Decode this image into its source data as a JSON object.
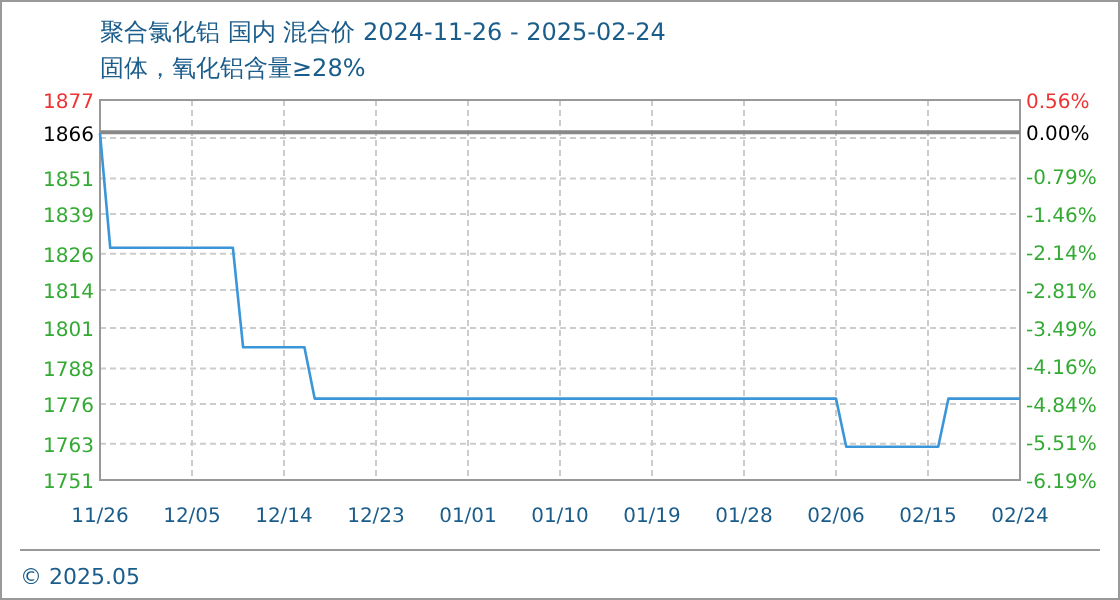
{
  "chart_data": {
    "type": "line",
    "title": "聚合氯化铝 国内 混合价 2024-11-26 - 2025-02-24",
    "subtitle": "固体，氧化铝含量≥28%",
    "x": [
      "2024-11-26",
      "2024-11-27",
      "2024-12-09",
      "2024-12-10",
      "2024-12-16",
      "2024-12-17",
      "2025-02-06",
      "2025-02-07",
      "2025-02-16",
      "2025-02-17",
      "2025-02-24"
    ],
    "series": [
      {
        "color": "#3a96d8",
        "values": [
          1866,
          1828,
          1828,
          1795,
          1795,
          1778,
          1778,
          1762,
          1762,
          1778,
          1778
        ]
      }
    ],
    "xlim": [
      "2024-11-26",
      "2025-02-24"
    ],
    "xticks": [
      {
        "value": "2024-11-26",
        "label": "11/26"
      },
      {
        "value": "2024-12-05",
        "label": "12/05"
      },
      {
        "value": "2024-12-14",
        "label": "12/14"
      },
      {
        "value": "2024-12-23",
        "label": "12/23"
      },
      {
        "value": "2025-01-01",
        "label": "01/01"
      },
      {
        "value": "2025-01-10",
        "label": "01/10"
      },
      {
        "value": "2025-01-19",
        "label": "01/19"
      },
      {
        "value": "2025-01-28",
        "label": "01/28"
      },
      {
        "value": "2025-02-06",
        "label": "02/06"
      },
      {
        "value": "2025-02-15",
        "label": "02/15"
      },
      {
        "value": "2025-02-24",
        "label": "02/24"
      }
    ],
    "ylim": [
      1751,
      1877
    ],
    "yticks": [
      1751,
      1763,
      {
        "value": 1776.2,
        "label": "1776"
      },
      1788,
      {
        "value": 1801.4,
        "label": "1801"
      },
      1814,
      1826,
      {
        "value": 1839.2,
        "label": "1839"
      },
      1851,
      {
        "value": 1864.4,
        "label": null
      },
      1877
    ],
    "y2lim": [
      -6.19,
      0.56
    ],
    "y2ticks": [
      {
        "value": -6.19,
        "label": "-6.19%"
      },
      {
        "value": -5.515,
        "label": "-5.51%"
      },
      {
        "value": -4.84,
        "label": "-4.84%"
      },
      {
        "value": -4.165,
        "label": "-4.16%"
      },
      {
        "value": -3.49,
        "label": "-3.49%"
      },
      {
        "value": -2.815,
        "label": "-2.81%"
      },
      {
        "value": -2.14,
        "label": "-2.14%"
      },
      {
        "value": -1.465,
        "label": "-1.46%"
      },
      {
        "value": -0.79,
        "label": "-0.79%"
      },
      {
        "value": 0.56,
        "label": "0.56%"
      }
    ],
    "ref_lines": [
      {
        "axis": "y",
        "value": 1866,
        "label": "1866",
        "color": "#888888"
      },
      {
        "axis": "y2",
        "value": 0,
        "label": "0.00%",
        "color": "#888888"
      }
    ],
    "grid": true,
    "annotations": [
      "© 2025.05"
    ]
  }
}
